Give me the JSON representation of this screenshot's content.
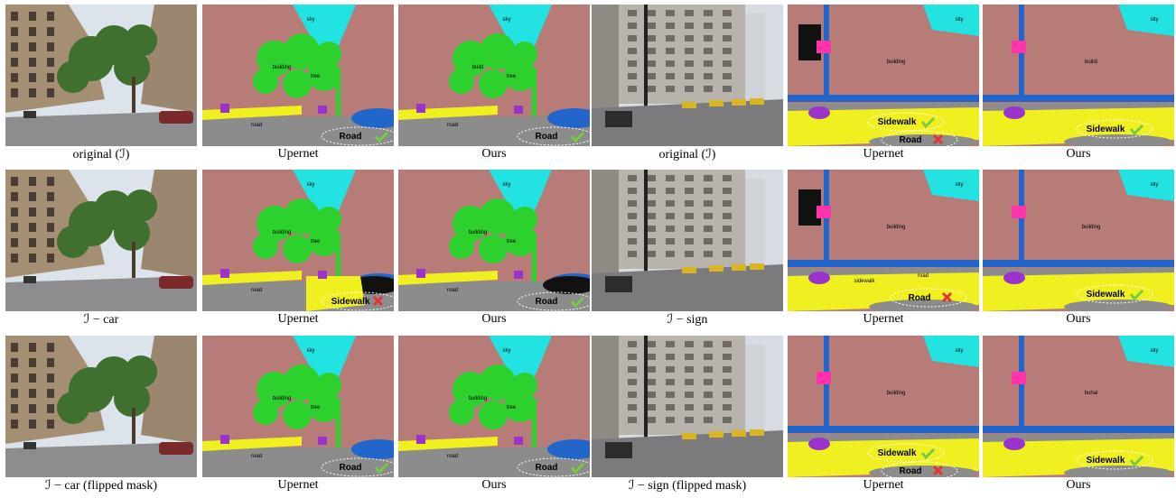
{
  "rows": [
    {
      "panels": [
        {
          "caption": "original (ℐ)"
        },
        {
          "caption": "Upernet",
          "labels": [
            "sky",
            "building",
            "tree",
            "road",
            "Road"
          ]
        },
        {
          "caption": "Ours",
          "labels": [
            "sky",
            "build",
            "tree",
            "road",
            "Road"
          ]
        },
        {
          "caption": "original (ℐ)"
        },
        {
          "caption": "Upernet",
          "labels": [
            "sky",
            "building",
            "Sidewalk",
            "Road"
          ]
        },
        {
          "caption": "Ours",
          "labels": [
            "sky",
            "buildi",
            "Sidewalk"
          ]
        }
      ]
    },
    {
      "panels": [
        {
          "caption": "ℐ − car"
        },
        {
          "caption": "Upernet",
          "labels": [
            "sky",
            "building",
            "tree",
            "road",
            "Sidewalk"
          ]
        },
        {
          "caption": "Ours",
          "labels": [
            "sky",
            "building",
            "tree",
            "road",
            "Road"
          ]
        },
        {
          "caption": "ℐ − sign"
        },
        {
          "caption": "Upernet",
          "labels": [
            "sky",
            "building",
            "sidewalk",
            "road",
            "Road"
          ]
        },
        {
          "caption": "Ours",
          "labels": [
            "sky",
            "building",
            "Sidewalk"
          ]
        }
      ]
    },
    {
      "panels": [
        {
          "caption": "ℐ − car (flipped mask)"
        },
        {
          "caption": "Upernet",
          "labels": [
            "sky",
            "building",
            "tree",
            "road",
            "Road"
          ]
        },
        {
          "caption": "Ours",
          "labels": [
            "sky",
            "building",
            "tree",
            "road",
            "Road"
          ]
        },
        {
          "caption": "ℐ − sign (flipped mask)"
        },
        {
          "caption": "Upernet",
          "labels": [
            "sky",
            "building",
            "Sidewalk",
            "Road"
          ]
        },
        {
          "caption": "Ours",
          "labels": [
            "sky",
            "buhal",
            "Sidewalk"
          ]
        }
      ]
    }
  ]
}
